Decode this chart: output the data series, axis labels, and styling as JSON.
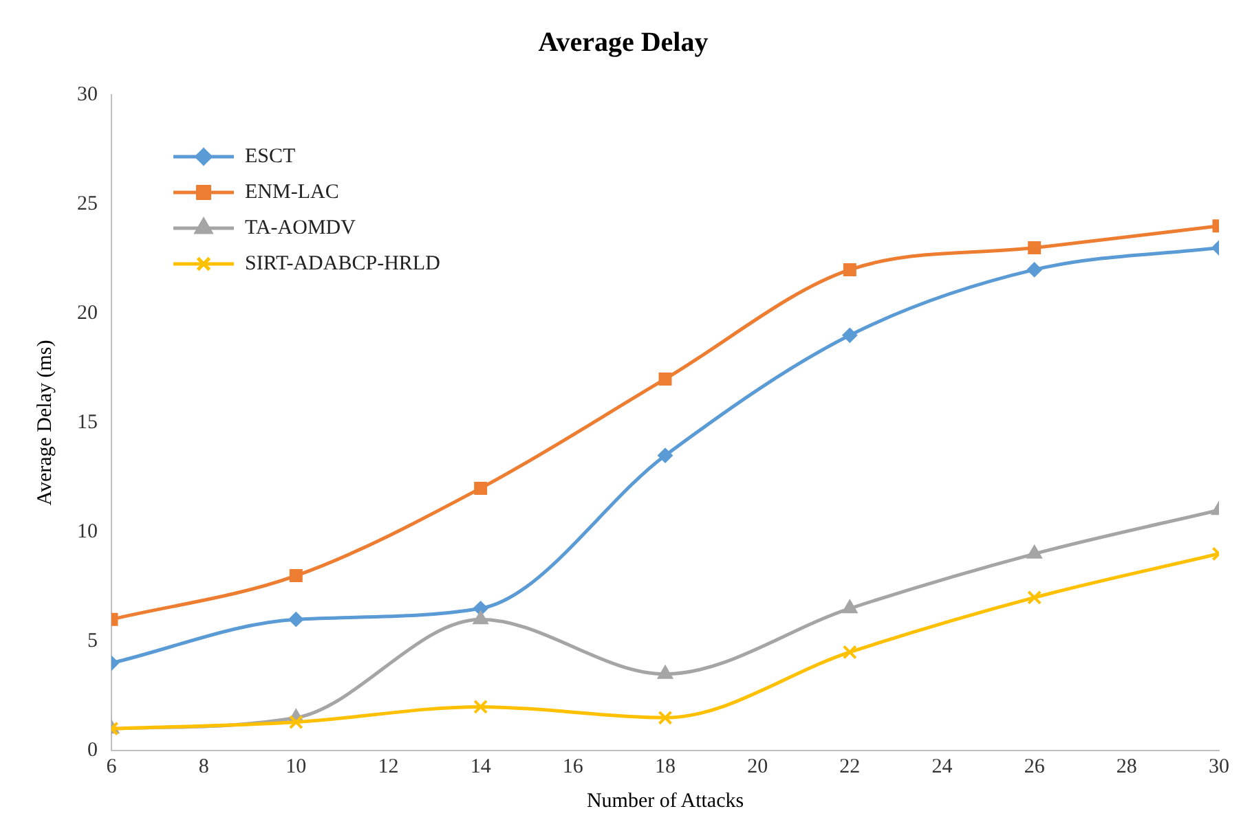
{
  "chart_data": {
    "type": "line",
    "title": "Average Delay",
    "xlabel": "Number of Attacks",
    "ylabel": "Average Delay (ms)",
    "x": [
      6,
      10,
      14,
      18,
      22,
      26,
      30
    ],
    "xlim": [
      6,
      30
    ],
    "xticks": [
      6,
      8,
      10,
      12,
      14,
      16,
      18,
      20,
      22,
      24,
      26,
      28,
      30
    ],
    "ylim": [
      0,
      30
    ],
    "yticks": [
      0,
      5,
      10,
      15,
      20,
      25,
      30
    ],
    "grid": false,
    "legend": "top left",
    "series": [
      {
        "name": "ESCT",
        "color": "#5b9bd5",
        "marker": "diamond",
        "values": [
          4,
          6,
          6.5,
          13.5,
          19,
          22,
          23
        ]
      },
      {
        "name": "ENM-LAC",
        "color": "#ed7d31",
        "marker": "square",
        "values": [
          6,
          8,
          12,
          17,
          22,
          23,
          24
        ]
      },
      {
        "name": "TA-AOMDV",
        "color": "#a5a5a5",
        "marker": "triangle",
        "values": [
          1,
          1.5,
          6,
          3.5,
          6.5,
          9,
          11
        ]
      },
      {
        "name": "SIRT-ADABCP-HRLD",
        "color": "#ffc000",
        "marker": "cross",
        "values": [
          1,
          1.3,
          2,
          1.5,
          4.5,
          7,
          9
        ]
      }
    ]
  }
}
